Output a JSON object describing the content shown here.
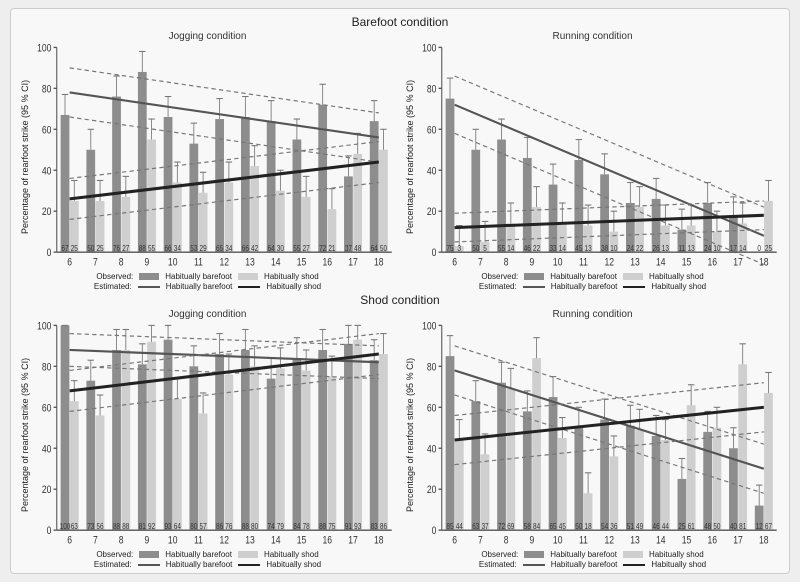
{
  "layout": {
    "sections": [
      "Barefoot condition",
      "Shod condition"
    ],
    "panels": [
      "Jogging condition",
      "Running condition"
    ],
    "ylabel": "Percentage of rearfoot strike (95 % CI)",
    "ages": [
      6,
      7,
      8,
      9,
      10,
      11,
      12,
      13,
      14,
      15,
      16,
      17,
      18
    ],
    "ylim": [
      0,
      100
    ],
    "ytick_step": 20,
    "legend": {
      "observed_label": "Observed:",
      "estimated_label": "Estimated:",
      "barefoot_label": "Habitually barefoot",
      "shod_label": "Habitually shod"
    }
  },
  "colors": {
    "bar_barefoot": "#8d8d8d",
    "bar_shod": "#cfcfcf",
    "line_barefoot": "#555555",
    "line_shod": "#222222",
    "ci_dash": "#777777",
    "err_bar": "#777777",
    "axis": "#555555",
    "tick_text": "#333333",
    "value_text": "#333333",
    "bg": "#f8f8f8"
  },
  "style": {
    "bar_width": 0.34,
    "bar_gap": 0.02,
    "err_cap": 3,
    "err_len": 10,
    "line_width": 1.6,
    "ci_width": 0.9,
    "ci_dash": "4,3",
    "title_fontsize": 12,
    "panel_title_fontsize": 10,
    "axis_fontsize": 8,
    "value_fontsize": 6
  },
  "data": {
    "barefoot_jogging": {
      "barefoot": [
        67,
        50,
        76,
        88,
        66,
        53,
        65,
        66,
        64,
        55,
        72,
        37,
        64
      ],
      "shod": [
        25,
        25,
        27,
        55,
        34,
        29,
        34,
        42,
        30,
        27,
        21,
        48,
        50
      ],
      "line_barefoot": {
        "y0": 78,
        "y1": 56,
        "ci": 12
      },
      "line_shod": {
        "y0": 26,
        "y1": 44,
        "ci": 10
      }
    },
    "barefoot_running": {
      "barefoot": [
        75,
        50,
        55,
        46,
        33,
        45,
        38,
        24,
        26,
        11,
        24,
        17,
        0
      ],
      "shod": [
        3,
        5,
        14,
        22,
        14,
        13,
        10,
        22,
        13,
        13,
        10,
        14,
        25
      ],
      "line_barefoot": {
        "y0": 72,
        "y1": 8,
        "ci": 14
      },
      "line_shod": {
        "y0": 12,
        "y1": 18,
        "ci": 7
      }
    },
    "shod_jogging": {
      "barefoot": [
        100,
        73,
        88,
        81,
        93,
        80,
        86,
        88,
        74,
        84,
        88,
        91,
        83
      ],
      "shod": [
        63,
        56,
        88,
        92,
        64,
        57,
        76,
        80,
        79,
        78,
        75,
        93,
        86
      ],
      "line_barefoot": {
        "y0": 88,
        "y1": 82,
        "ci": 8
      },
      "line_shod": {
        "y0": 68,
        "y1": 86,
        "ci": 10
      }
    },
    "shod_running": {
      "barefoot": [
        85,
        63,
        72,
        58,
        65,
        50,
        54,
        51,
        46,
        25,
        48,
        40,
        12
      ],
      "shod": [
        44,
        37,
        69,
        84,
        45,
        18,
        36,
        49,
        44,
        61,
        50,
        81,
        67
      ],
      "line_barefoot": {
        "y0": 78,
        "y1": 30,
        "ci": 12
      },
      "line_shod": {
        "y0": 44,
        "y1": 60,
        "ci": 12
      }
    }
  }
}
